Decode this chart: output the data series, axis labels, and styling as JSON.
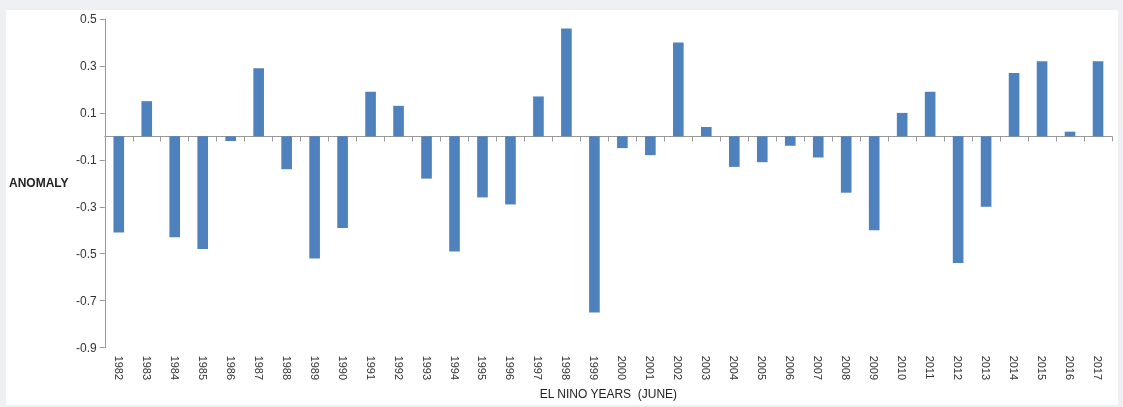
{
  "chart_data": {
    "type": "bar",
    "xlabel": "EL NINO YEARS  (JUNE)",
    "ylabel": "ANOMALY",
    "categories": [
      "1982",
      "1983",
      "1984",
      "1985",
      "1986",
      "1987",
      "1988",
      "1989",
      "1990",
      "1991",
      "1992",
      "1993",
      "1994",
      "1995",
      "1996",
      "1997",
      "1998",
      "1999",
      "2000",
      "2001",
      "2002",
      "2003",
      "2004",
      "2005",
      "2006",
      "2007",
      "2008",
      "2009",
      "2010",
      "2011",
      "2012",
      "2013",
      "2014",
      "2015",
      "2016",
      "2017"
    ],
    "values": [
      -0.41,
      0.15,
      -0.43,
      -0.48,
      -0.02,
      0.29,
      -0.14,
      -0.52,
      -0.39,
      0.19,
      0.13,
      -0.18,
      -0.49,
      -0.26,
      -0.29,
      0.17,
      0.46,
      -0.75,
      -0.05,
      -0.08,
      0.4,
      0.04,
      -0.13,
      -0.11,
      -0.04,
      -0.09,
      -0.24,
      -0.4,
      0.1,
      0.19,
      -0.54,
      -0.3,
      0.27,
      0.32,
      0.02,
      0.32
    ],
    "color": "#4f81bd",
    "ylim": [
      -0.9,
      0.5
    ],
    "yticks": [
      -0.9,
      -0.7,
      -0.5,
      -0.3,
      -0.1,
      0.1,
      0.3,
      0.5
    ],
    "grid": false
  }
}
